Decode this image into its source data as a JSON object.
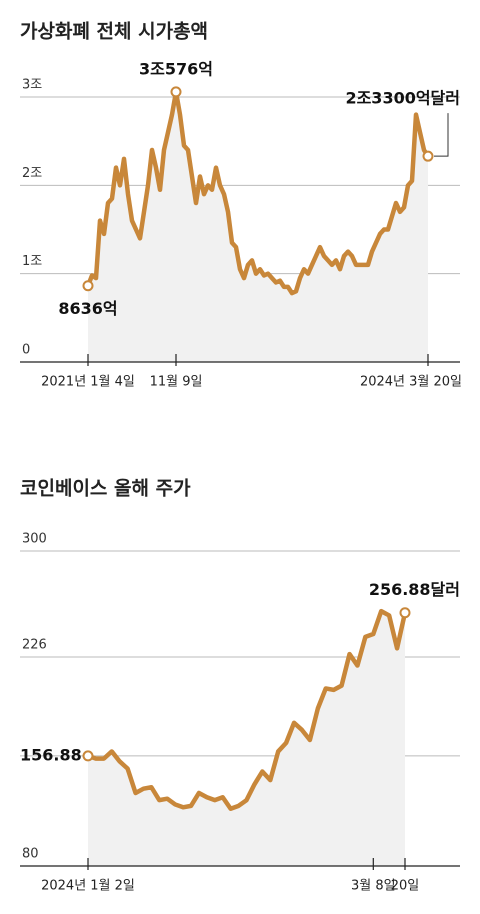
{
  "chart_data": [
    {
      "type": "line",
      "title": "가상화폐 전체 시가총액",
      "color": "#c8873a",
      "area_color": "#f1f1f1",
      "ylim": [
        0,
        3
      ],
      "yticks": [
        0,
        {
          "value": 1,
          "label": "1조"
        },
        {
          "value": 2,
          "label": "2조"
        },
        {
          "value": 3,
          "label": "3조"
        }
      ],
      "grid": true,
      "categories": [
        "2021년 1월 4일",
        null,
        null,
        null,
        null,
        null,
        null,
        null,
        null,
        null,
        null,
        null,
        null,
        null,
        null,
        null,
        null,
        null,
        null,
        null,
        null,
        null,
        "11월 9일",
        null,
        null,
        null,
        null,
        null,
        null,
        null,
        null,
        null,
        null,
        null,
        null,
        null,
        null,
        null,
        null,
        null,
        null,
        null,
        null,
        null,
        null,
        null,
        null,
        null,
        null,
        null,
        null,
        null,
        null,
        null,
        null,
        null,
        null,
        null,
        null,
        null,
        null,
        null,
        null,
        null,
        null,
        null,
        null,
        null,
        null,
        null,
        null,
        null,
        null,
        null,
        null,
        null,
        null,
        null,
        null,
        null,
        null,
        null,
        null,
        null,
        null,
        "2024년 3월 20일"
      ],
      "values": [
        0.8636,
        0.98,
        0.95,
        1.6,
        1.45,
        1.8,
        1.85,
        2.2,
        2.0,
        2.3,
        1.9,
        1.6,
        1.5,
        1.4,
        1.7,
        2.0,
        2.4,
        2.2,
        1.95,
        2.4,
        2.6,
        2.8,
        3.0576,
        2.8,
        2.45,
        2.4,
        2.1,
        1.8,
        2.1,
        1.9,
        2.0,
        1.95,
        2.2,
        2.0,
        1.9,
        1.7,
        1.35,
        1.3,
        1.05,
        0.95,
        1.1,
        1.15,
        1.0,
        1.05,
        0.98,
        1.0,
        0.95,
        0.9,
        0.92,
        0.85,
        0.85,
        0.78,
        0.8,
        0.95,
        1.05,
        1.0,
        1.1,
        1.2,
        1.3,
        1.2,
        1.15,
        1.1,
        1.15,
        1.05,
        1.2,
        1.25,
        1.2,
        1.1,
        1.1,
        1.1,
        1.1,
        1.25,
        1.35,
        1.45,
        1.5,
        1.5,
        1.65,
        1.8,
        1.7,
        1.75,
        2.0,
        2.05,
        2.8,
        2.6,
        2.4,
        2.33
      ],
      "value_labels": [
        "8636억",
        null,
        null,
        null,
        null,
        null,
        null,
        null,
        null,
        null,
        null,
        null,
        null,
        null,
        null,
        null,
        null,
        null,
        null,
        null,
        null,
        null,
        "3조576억",
        null,
        null,
        null,
        null,
        null,
        null,
        null,
        null,
        null,
        null,
        null,
        null,
        null,
        null,
        null,
        null,
        null,
        null,
        null,
        null,
        null,
        null,
        null,
        null,
        null,
        null,
        null,
        null,
        null,
        null,
        null,
        null,
        null,
        null,
        null,
        null,
        null,
        null,
        null,
        null,
        null,
        null,
        null,
        null,
        null,
        null,
        null,
        null,
        null,
        null,
        null,
        null,
        null,
        null,
        null,
        null,
        null,
        null,
        null,
        null,
        null,
        null,
        "2조3300억달러"
      ]
    },
    {
      "type": "line",
      "title": "코인베이스 올해 주가",
      "color": "#c8873a",
      "area_color": "#f1f1f1",
      "ylim": [
        80,
        300
      ],
      "yticks": [
        80,
        226,
        300
      ],
      "grid": true,
      "categories": [
        "2024년 1월 2일",
        null,
        null,
        null,
        null,
        null,
        null,
        null,
        null,
        null,
        null,
        null,
        null,
        null,
        null,
        null,
        null,
        null,
        null,
        null,
        null,
        null,
        null,
        null,
        null,
        null,
        null,
        null,
        null,
        null,
        null,
        null,
        null,
        null,
        null,
        null,
        "3월 8일",
        null,
        null,
        null,
        "20일"
      ],
      "values": [
        156.88,
        155,
        155,
        160,
        153,
        148,
        131,
        134,
        135,
        126,
        127,
        123,
        121,
        122,
        131,
        128,
        126,
        128,
        120,
        122,
        126,
        137,
        146,
        140,
        160,
        166,
        180,
        175,
        168,
        190,
        204,
        203,
        206,
        228,
        220,
        240,
        242,
        258,
        255,
        232,
        256.88
      ],
      "value_labels": [
        "156.88",
        null,
        null,
        null,
        null,
        null,
        null,
        null,
        null,
        null,
        null,
        null,
        null,
        null,
        null,
        null,
        null,
        null,
        null,
        null,
        null,
        null,
        null,
        null,
        null,
        null,
        null,
        null,
        null,
        null,
        null,
        null,
        null,
        null,
        null,
        null,
        null,
        null,
        null,
        null,
        "256.88달러"
      ]
    }
  ]
}
